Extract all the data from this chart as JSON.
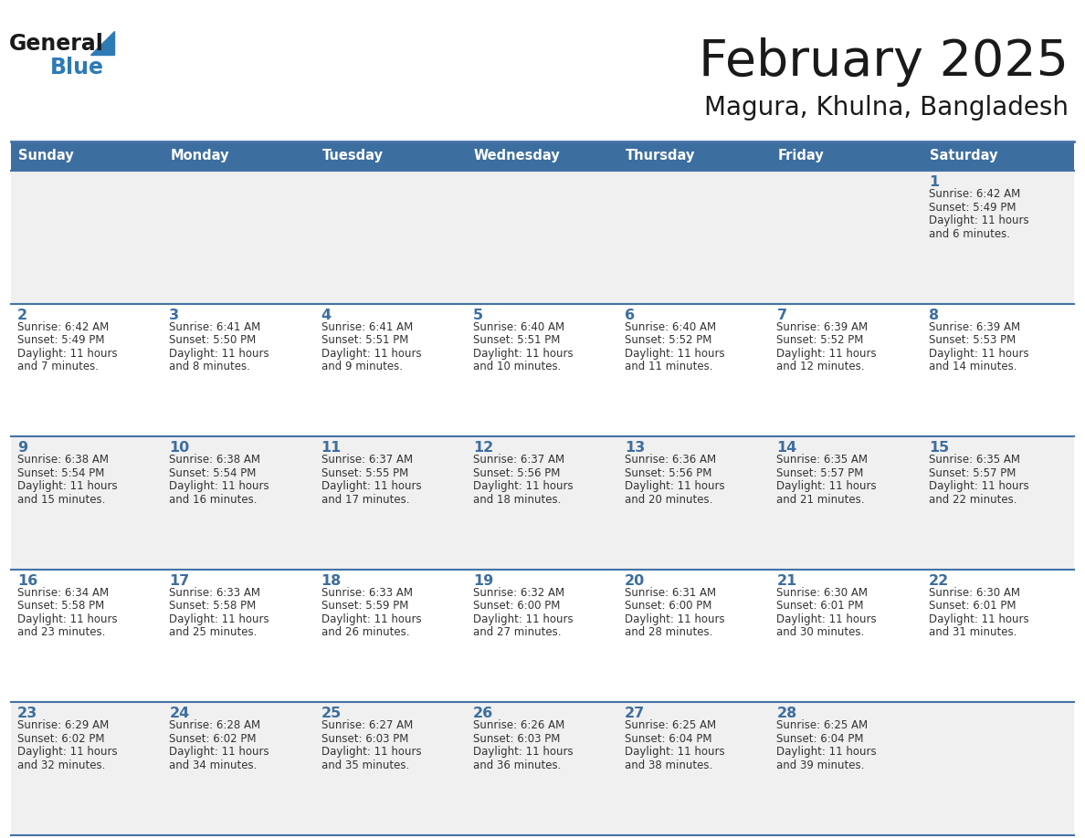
{
  "title": "February 2025",
  "subtitle": "Magura, Khulna, Bangladesh",
  "days_of_week": [
    "Sunday",
    "Monday",
    "Tuesday",
    "Wednesday",
    "Thursday",
    "Friday",
    "Saturday"
  ],
  "header_bg": "#3d6ea0",
  "header_text": "#ffffff",
  "row_bg_light": "#f0f0f0",
  "row_bg_white": "#ffffff",
  "cell_border": "#4472A8",
  "day_number_color": "#3d6ea0",
  "text_color": "#333333",
  "title_color": "#1a1a1a",
  "logo_general_color": "#1a1a1a",
  "logo_blue_color": "#2E7AB5",
  "calendar_data": [
    {
      "day": 1,
      "col": 6,
      "row": 0,
      "sunrise": "6:42 AM",
      "sunset": "5:49 PM",
      "daylight": "11 hours and 6 minutes."
    },
    {
      "day": 2,
      "col": 0,
      "row": 1,
      "sunrise": "6:42 AM",
      "sunset": "5:49 PM",
      "daylight": "11 hours and 7 minutes."
    },
    {
      "day": 3,
      "col": 1,
      "row": 1,
      "sunrise": "6:41 AM",
      "sunset": "5:50 PM",
      "daylight": "11 hours and 8 minutes."
    },
    {
      "day": 4,
      "col": 2,
      "row": 1,
      "sunrise": "6:41 AM",
      "sunset": "5:51 PM",
      "daylight": "11 hours and 9 minutes."
    },
    {
      "day": 5,
      "col": 3,
      "row": 1,
      "sunrise": "6:40 AM",
      "sunset": "5:51 PM",
      "daylight": "11 hours and 10 minutes."
    },
    {
      "day": 6,
      "col": 4,
      "row": 1,
      "sunrise": "6:40 AM",
      "sunset": "5:52 PM",
      "daylight": "11 hours and 11 minutes."
    },
    {
      "day": 7,
      "col": 5,
      "row": 1,
      "sunrise": "6:39 AM",
      "sunset": "5:52 PM",
      "daylight": "11 hours and 12 minutes."
    },
    {
      "day": 8,
      "col": 6,
      "row": 1,
      "sunrise": "6:39 AM",
      "sunset": "5:53 PM",
      "daylight": "11 hours and 14 minutes."
    },
    {
      "day": 9,
      "col": 0,
      "row": 2,
      "sunrise": "6:38 AM",
      "sunset": "5:54 PM",
      "daylight": "11 hours and 15 minutes."
    },
    {
      "day": 10,
      "col": 1,
      "row": 2,
      "sunrise": "6:38 AM",
      "sunset": "5:54 PM",
      "daylight": "11 hours and 16 minutes."
    },
    {
      "day": 11,
      "col": 2,
      "row": 2,
      "sunrise": "6:37 AM",
      "sunset": "5:55 PM",
      "daylight": "11 hours and 17 minutes."
    },
    {
      "day": 12,
      "col": 3,
      "row": 2,
      "sunrise": "6:37 AM",
      "sunset": "5:56 PM",
      "daylight": "11 hours and 18 minutes."
    },
    {
      "day": 13,
      "col": 4,
      "row": 2,
      "sunrise": "6:36 AM",
      "sunset": "5:56 PM",
      "daylight": "11 hours and 20 minutes."
    },
    {
      "day": 14,
      "col": 5,
      "row": 2,
      "sunrise": "6:35 AM",
      "sunset": "5:57 PM",
      "daylight": "11 hours and 21 minutes."
    },
    {
      "day": 15,
      "col": 6,
      "row": 2,
      "sunrise": "6:35 AM",
      "sunset": "5:57 PM",
      "daylight": "11 hours and 22 minutes."
    },
    {
      "day": 16,
      "col": 0,
      "row": 3,
      "sunrise": "6:34 AM",
      "sunset": "5:58 PM",
      "daylight": "11 hours and 23 minutes."
    },
    {
      "day": 17,
      "col": 1,
      "row": 3,
      "sunrise": "6:33 AM",
      "sunset": "5:58 PM",
      "daylight": "11 hours and 25 minutes."
    },
    {
      "day": 18,
      "col": 2,
      "row": 3,
      "sunrise": "6:33 AM",
      "sunset": "5:59 PM",
      "daylight": "11 hours and 26 minutes."
    },
    {
      "day": 19,
      "col": 3,
      "row": 3,
      "sunrise": "6:32 AM",
      "sunset": "6:00 PM",
      "daylight": "11 hours and 27 minutes."
    },
    {
      "day": 20,
      "col": 4,
      "row": 3,
      "sunrise": "6:31 AM",
      "sunset": "6:00 PM",
      "daylight": "11 hours and 28 minutes."
    },
    {
      "day": 21,
      "col": 5,
      "row": 3,
      "sunrise": "6:30 AM",
      "sunset": "6:01 PM",
      "daylight": "11 hours and 30 minutes."
    },
    {
      "day": 22,
      "col": 6,
      "row": 3,
      "sunrise": "6:30 AM",
      "sunset": "6:01 PM",
      "daylight": "11 hours and 31 minutes."
    },
    {
      "day": 23,
      "col": 0,
      "row": 4,
      "sunrise": "6:29 AM",
      "sunset": "6:02 PM",
      "daylight": "11 hours and 32 minutes."
    },
    {
      "day": 24,
      "col": 1,
      "row": 4,
      "sunrise": "6:28 AM",
      "sunset": "6:02 PM",
      "daylight": "11 hours and 34 minutes."
    },
    {
      "day": 25,
      "col": 2,
      "row": 4,
      "sunrise": "6:27 AM",
      "sunset": "6:03 PM",
      "daylight": "11 hours and 35 minutes."
    },
    {
      "day": 26,
      "col": 3,
      "row": 4,
      "sunrise": "6:26 AM",
      "sunset": "6:03 PM",
      "daylight": "11 hours and 36 minutes."
    },
    {
      "day": 27,
      "col": 4,
      "row": 4,
      "sunrise": "6:25 AM",
      "sunset": "6:04 PM",
      "daylight": "11 hours and 38 minutes."
    },
    {
      "day": 28,
      "col": 5,
      "row": 4,
      "sunrise": "6:25 AM",
      "sunset": "6:04 PM",
      "daylight": "11 hours and 39 minutes."
    }
  ]
}
